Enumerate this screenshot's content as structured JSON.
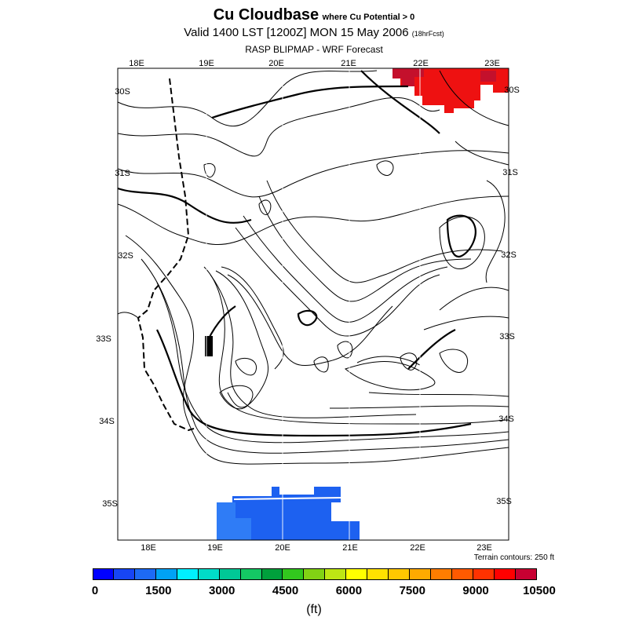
{
  "title": {
    "main": "Cu Cloudbase",
    "qualifier": "where Cu Potential > 0",
    "valid": "Valid 1400 LST [1200Z] MON 15 May 2006",
    "forecast": "(18hrFcst)",
    "model": "RASP BLIPMAP - WRF Forecast"
  },
  "map": {
    "lon_labels_top": [
      "18E",
      "19E",
      "20E",
      "21E",
      "22E",
      "23E"
    ],
    "lon_labels_bottom": [
      "18E",
      "19E",
      "20E",
      "21E",
      "22E",
      "23E"
    ],
    "lat_labels_left": [
      "30S",
      "31S",
      "32S",
      "33S",
      "34S",
      "35S"
    ],
    "lat_labels_right": [
      "30S",
      "31S",
      "32S",
      "33S",
      "34S",
      "35S"
    ],
    "terrain_note": "Terrain contours: 250 ft",
    "regions": [
      {
        "name": "northeast-red-patch",
        "color": "#ee1111",
        "dark_color": "#c4102c"
      },
      {
        "name": "south-blue-patch",
        "color": "#1d61f0",
        "light_color": "#2f7cf6"
      }
    ]
  },
  "colorbar": {
    "colors": [
      "#0000ff",
      "#1745f5",
      "#1d6af5",
      "#00a2f5",
      "#00f0ff",
      "#00dcc8",
      "#00c896",
      "#14c864",
      "#00a03c",
      "#32c81e",
      "#82d214",
      "#bee614",
      "#ffff00",
      "#ffe100",
      "#ffc800",
      "#ffaa00",
      "#ff7d00",
      "#ff5a00",
      "#ff3200",
      "#ff0000",
      "#c80032"
    ],
    "labels": [
      "0",
      "1500",
      "3000",
      "4500",
      "6000",
      "7500",
      "9000",
      "10500"
    ],
    "units": "(ft)"
  }
}
